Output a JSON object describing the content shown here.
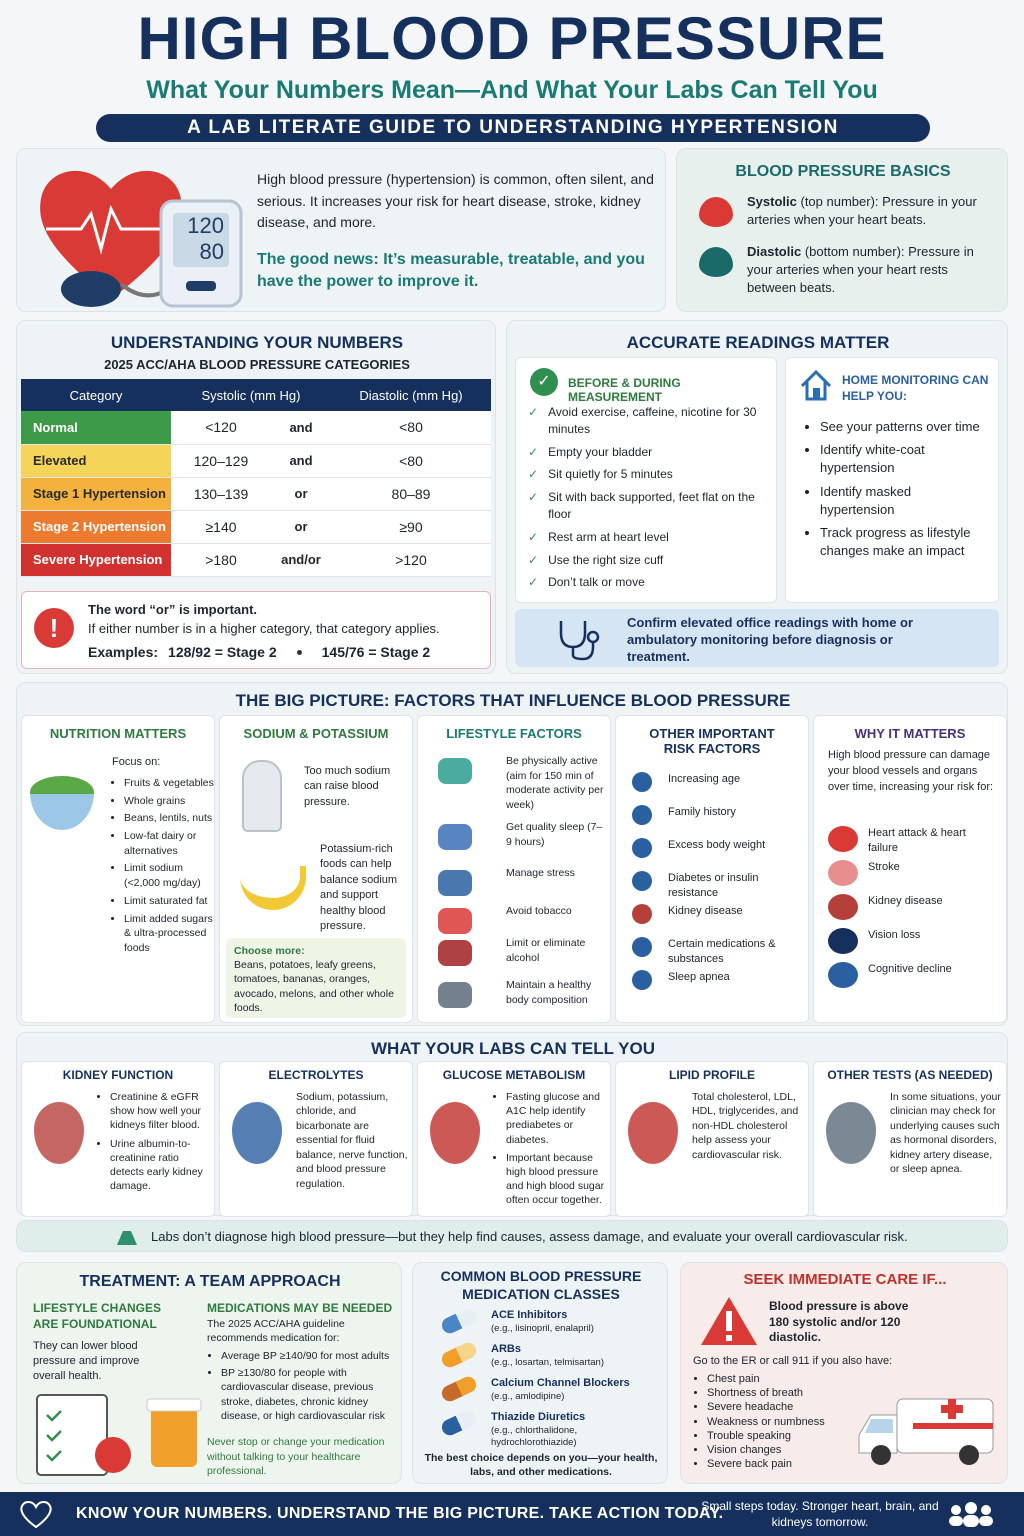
{
  "header": {
    "title": "HIGH BLOOD PRESSURE",
    "subtitle": "What Your Numbers Mean—And What Your Labs Can Tell You",
    "banner": "A LAB LITERATE GUIDE TO UNDERSTANDING HYPERTENSION"
  },
  "intro": {
    "monitor_top": "120",
    "monitor_bottom": "80",
    "text": "High blood pressure (hypertension) is common, often silent, and serious. It increases your risk for heart disease, stroke, kidney disease, and more.",
    "good_news": "The good news: It’s measurable, treatable, and you have the power to improve it."
  },
  "basics": {
    "title": "BLOOD PRESSURE BASICS",
    "items": [
      {
        "term": "Systolic",
        "text": "(top number): Pressure in your arteries when your heart beats."
      },
      {
        "term": "Diastolic",
        "text": "(bottom number): Pressure in your arteries when your heart rests between beats."
      }
    ]
  },
  "numbers": {
    "title": "UNDERSTANDING YOUR NUMBERS",
    "subtitle": "2025 ACC/AHA BLOOD PRESSURE CATEGORIES",
    "table": {
      "header": [
        "Category",
        "Systolic (mm Hg)",
        "Diastolic (mm Hg)"
      ],
      "rows": [
        [
          "Normal",
          "<120",
          "and",
          "<80"
        ],
        [
          "Elevated",
          "120–129",
          "and",
          "<80"
        ],
        [
          "Stage 1 Hypertension",
          "130–139",
          "or",
          "80–89"
        ],
        [
          "Stage 2 Hypertension",
          "≥140",
          "or",
          "≥90"
        ],
        [
          "Severe Hypertension",
          ">180",
          "and/or",
          ">120"
        ]
      ]
    },
    "note": {
      "title": "The word “or” is important.",
      "text": "If either number is in a higher category, that category applies.",
      "examples_label": "Examples:",
      "examples": [
        "128/92 = Stage 2",
        "145/76 = Stage 2"
      ]
    }
  },
  "accurate": {
    "title": "ACCURATE READINGS MATTER",
    "before": {
      "title": "BEFORE & DURING MEASUREMENT",
      "items": [
        "Avoid exercise, caffeine, nicotine for 30 minutes",
        "Empty your bladder",
        "Sit quietly for 5 minutes",
        "Sit with back supported, feet flat on the floor",
        "Rest arm at heart level",
        "Use the right size cuff",
        "Don’t talk or move"
      ]
    },
    "home": {
      "title": "HOME MONITORING CAN HELP YOU:",
      "items": [
        "See your patterns over time",
        "Identify white-coat hypertension",
        "Identify masked hypertension",
        "Track progress as lifestyle changes make an impact"
      ]
    },
    "confirm": "Confirm elevated office readings with home or ambulatory monitoring before diagnosis or treatment."
  },
  "factors": {
    "title": "THE BIG PICTURE: FACTORS THAT INFLUENCE BLOOD PRESSURE",
    "nutrition": {
      "title": "NUTRITION MATTERS",
      "focus": "Focus on:",
      "items": [
        "Fruits & vegetables",
        "Whole grains",
        "Beans, lentils, nuts",
        "Low-fat dairy or alternatives",
        "Limit sodium (<2,000 mg/day)",
        "Limit saturated fat",
        "Limit added sugars & ultra-processed foods"
      ]
    },
    "sodium": {
      "title": "SODIUM & POTASSIUM",
      "sodium_text": "Too much sodium can raise blood pressure.",
      "potassium_text": "Potassium-rich foods can help balance sodium and support healthy blood pressure.",
      "choose_title": "Choose more:",
      "choose_text": "Beans, potatoes, leafy greens, tomatoes, bananas, oranges, avocado, melons, and other whole foods."
    },
    "lifestyle": {
      "title": "LIFESTYLE FACTORS",
      "items": [
        "Be physically active (aim for 150 min of moderate activity per week)",
        "Get quality sleep (7–9 hours)",
        "Manage stress",
        "Avoid tobacco",
        "Limit or eliminate alcohol",
        "Maintain a healthy body composition"
      ]
    },
    "risk": {
      "title": "OTHER IMPORTANT RISK FACTORS",
      "items": [
        "Increasing age",
        "Family history",
        "Excess body weight",
        "Diabetes or insulin resistance",
        "Kidney disease",
        "Certain medications & substances",
        "Sleep apnea"
      ]
    },
    "why": {
      "title": "WHY IT MATTERS",
      "text": "High blood pressure can damage your blood vessels and organs over time, increasing your risk for:",
      "items": [
        "Heart attack & heart failure",
        "Stroke",
        "Kidney disease",
        "Vision loss",
        "Cognitive decline"
      ]
    }
  },
  "labs": {
    "title": "WHAT YOUR LABS CAN TELL YOU",
    "panels": [
      {
        "title": "KIDNEY FUNCTION",
        "items": [
          "Creatinine & eGFR show how well your kidneys filter blood.",
          "Urine albumin-to-creatinine ratio detects early kidney damage."
        ]
      },
      {
        "title": "ELECTROLYTES",
        "text": "Sodium, potassium, chloride, and bicarbonate are essential for fluid balance, nerve function, and blood pressure regulation."
      },
      {
        "title": "GLUCOSE METABOLISM",
        "items": [
          "Fasting glucose and A1C help identify prediabetes or diabetes.",
          "Important because high blood pressure and high blood sugar often occur together."
        ]
      },
      {
        "title": "LIPID PROFILE",
        "text": "Total cholesterol, LDL, HDL, triglycerides, and non-HDL cholesterol help assess your cardiovascular risk."
      },
      {
        "title": "OTHER TESTS (AS NEEDED)",
        "text": "In some situations, your clinician may check for underlying causes such as hormonal disorders, kidney artery disease, or sleep apnea."
      }
    ],
    "note": "Labs don’t diagnose high blood pressure—but they help find causes, assess damage, and evaluate your overall cardiovascular risk."
  },
  "treatment": {
    "title": "TREATMENT: A TEAM APPROACH",
    "lifestyle_title": "LIFESTYLE CHANGES ARE FOUNDATIONAL",
    "lifestyle_text": "They can lower blood pressure and improve overall health.",
    "meds_title": "MEDICATIONS MAY BE NEEDED",
    "meds_intro": "The 2025 ACC/AHA guideline recommends medication for:",
    "meds_items": [
      "Average BP ≥140/90 for most adults",
      "BP ≥130/80 for people with cardiovascular disease, previous stroke, diabetes, chronic kidney disease, or high cardiovascular risk"
    ],
    "warning": "Never stop or change your medication without talking to your healthcare professional."
  },
  "medications": {
    "title": "COMMON BLOOD PRESSURE MEDICATION CLASSES",
    "items": [
      {
        "name": "ACE Inhibitors",
        "examples": "(e.g., lisinopril, enalapril)"
      },
      {
        "name": "ARBs",
        "examples": "(e.g., losartan, telmisartan)"
      },
      {
        "name": "Calcium Channel Blockers",
        "examples": "(e.g., amlodipine)"
      },
      {
        "name": "Thiazide Diuretics",
        "examples": "(e.g., chlorthalidone, hydrochlorothiazide)"
      }
    ],
    "note": "The best choice depends on you—your health, labs, and other medications."
  },
  "care": {
    "title": "SEEK IMMEDIATE CARE IF...",
    "alert": "Blood pressure is above 180 systolic and/or 120 diastolic.",
    "intro": "Go to the ER or call 911 if you also have:",
    "items": [
      "Chest pain",
      "Shortness of breath",
      "Severe headache",
      "Weakness or numbness",
      "Trouble speaking",
      "Vision changes",
      "Severe back pain"
    ]
  },
  "footer": {
    "slogan": "KNOW YOUR NUMBERS. UNDERSTAND THE BIG PICTURE. TAKE ACTION TODAY.",
    "tagline": "Small steps today. Stronger heart, brain, and kidneys tomorrow."
  }
}
